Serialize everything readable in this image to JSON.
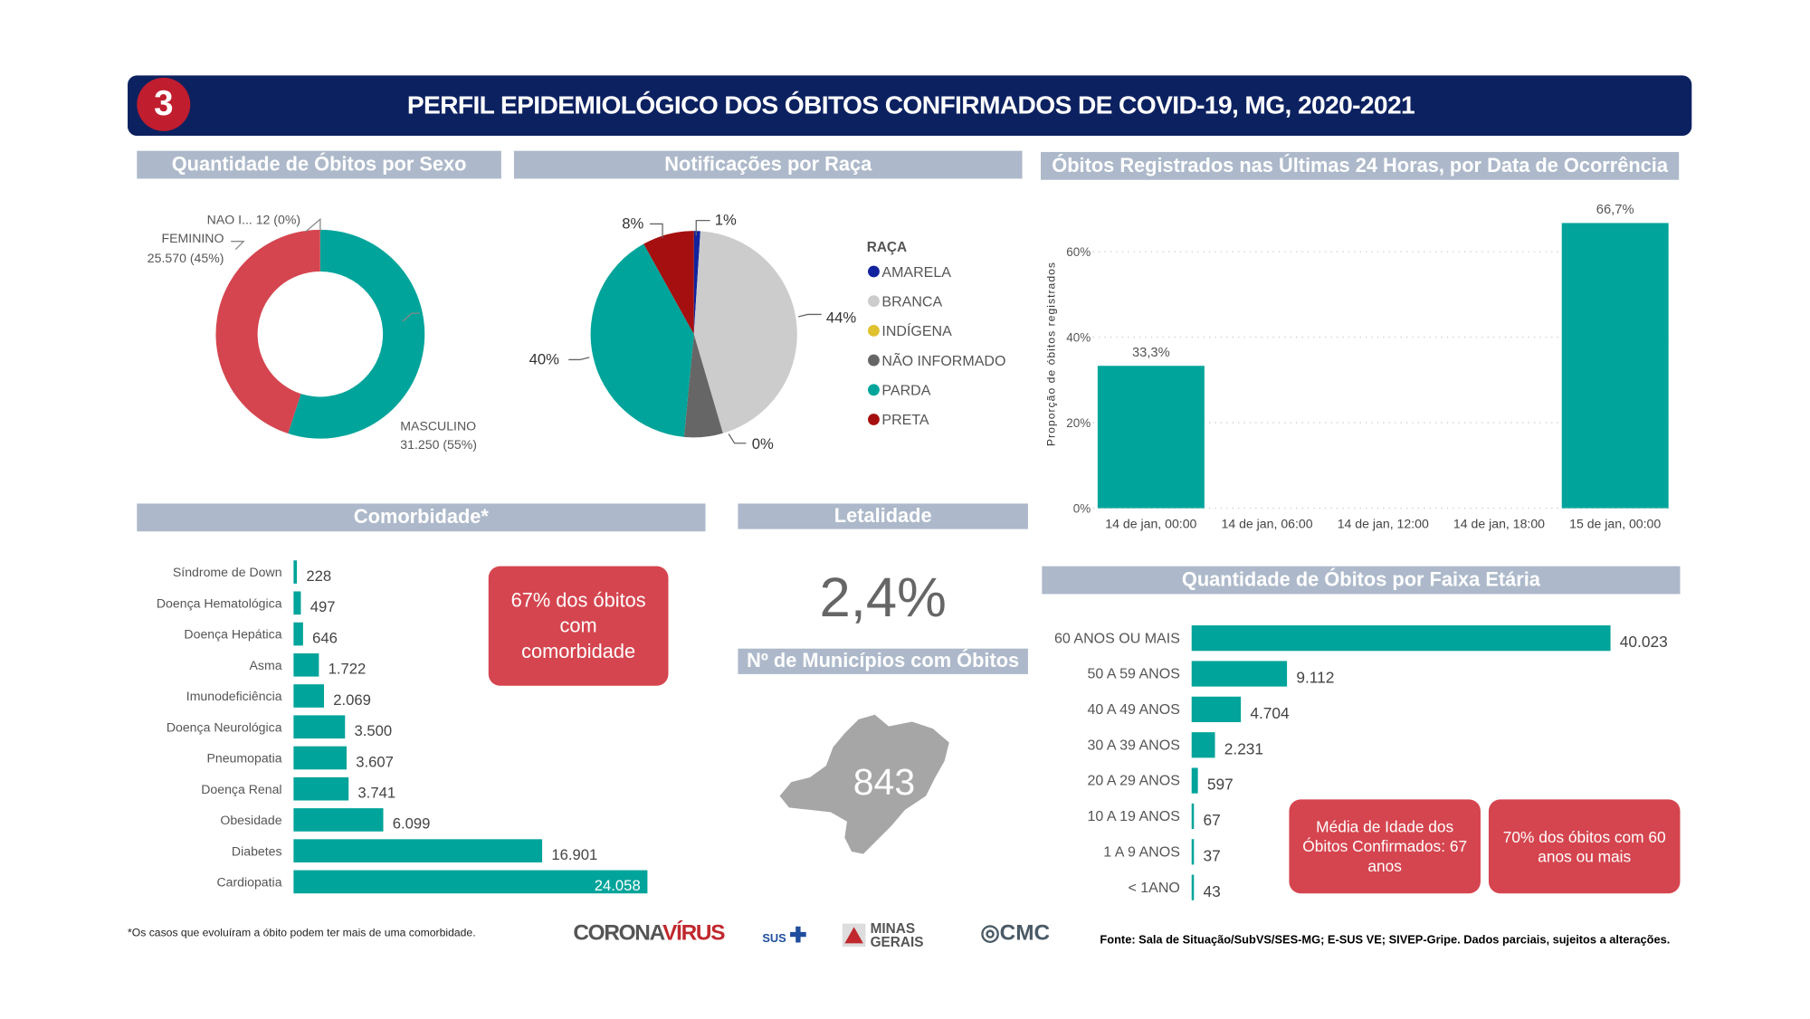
{
  "header": {
    "badge": "3",
    "title": "PERFIL EPIDEMIOLÓGICO DOS ÓBITOS CONFIRMADOS DE COVID-19, MG, 2020-2021",
    "color": "#0c2160",
    "badge_color": "#c01d2e"
  },
  "sections": {
    "sexo": "Quantidade de Óbitos por Sexo",
    "raca": "Notificações por Raça",
    "ultimas24": "Óbitos Registrados nas Últimas 24 Horas, por Data de Ocorrência",
    "comorbidade": "Comorbidade*",
    "letalidade": "Letalidade",
    "municipios": "Nº de Municípios com Óbitos",
    "faixa": "Quantidade de Óbitos por Faixa Etária"
  },
  "letalidade": {
    "value": "2,4%"
  },
  "municipios": {
    "value": "843",
    "map_color": "#a6a6a6"
  },
  "callouts": {
    "comorbidade": "67% dos óbitos com comorbidade",
    "media_idade": "Média de Idade dos Óbitos Confirmados: 67 anos",
    "sessenta": "70% dos óbitos com 60 anos ou mais",
    "color": "#d5454f"
  },
  "footer": {
    "note": "*Os casos que evoluíram a óbito podem ter mais de uma comorbidade.",
    "source": "Fonte: Sala de Situação/SubVS/SES-MG; E-SUS VE; SIVEP-Gripe. Dados parciais, sujeitos a alterações.",
    "logos": {
      "corona": "CORONA",
      "virus": "VÍRUS",
      "sus": "SUS",
      "minas": "MINAS",
      "gerais": "GERAIS",
      "cmc": "CMC"
    }
  },
  "chart_data": [
    {
      "type": "pie",
      "variant": "donut",
      "categories": [
        "MASCULINO",
        "FEMININO",
        "NAO I..."
      ],
      "values": [
        31250,
        25570,
        12
      ],
      "labels": [
        "MASCULINO",
        "FEMININO",
        "NAO I... 12 (0%)"
      ],
      "value_labels": [
        "31.250 (55%)",
        "25.570 (45%)",
        ""
      ],
      "colors": [
        "#01a49a",
        "#d5454f",
        "#777777"
      ]
    },
    {
      "type": "pie",
      "legend_title": "RAÇA",
      "legend_position": "right",
      "categories": [
        "AMARELA",
        "BRANCA",
        "INDÍGENA",
        "NÃO INFORMADO",
        "PARDA",
        "PRETA"
      ],
      "values": [
        1,
        44,
        0,
        6,
        40,
        8
      ],
      "data_labels": [
        "1%",
        "44%",
        "0%",
        "",
        "40%",
        "8%"
      ],
      "colors": [
        "#12239e",
        "#cccccc",
        "#e0c12e",
        "#666666",
        "#01a49a",
        "#a50f0f"
      ]
    },
    {
      "type": "bar",
      "ylabel": "Proporção de óbitos registrados",
      "categories": [
        "14 de jan, 00:00",
        "14 de jan, 06:00",
        "14 de jan, 12:00",
        "14 de jan, 18:00",
        "15 de jan, 00:00"
      ],
      "values": [
        33.3,
        null,
        null,
        null,
        66.7
      ],
      "data_labels": [
        "33,3%",
        "",
        "",
        "",
        "66,7%"
      ],
      "yticks": [
        "0%",
        "20%",
        "40%",
        "60%"
      ],
      "ylim": [
        0,
        70
      ],
      "grid": true,
      "color": "#01a49a"
    },
    {
      "type": "bar",
      "orientation": "horizontal",
      "categories": [
        "Síndrome de Down",
        "Doença Hematológica",
        "Doença Hepática",
        "Asma",
        "Imunodeficiência",
        "Doença Neurológica",
        "Pneumopatia",
        "Doença Renal",
        "Obesidade",
        "Diabetes",
        "Cardiopatia"
      ],
      "values": [
        228,
        497,
        646,
        1722,
        2069,
        3500,
        3607,
        3741,
        6099,
        16901,
        24058
      ],
      "data_labels": [
        "228",
        "497",
        "646",
        "1.722",
        "2.069",
        "3.500",
        "3.607",
        "3.741",
        "6.099",
        "16.901",
        "24.058"
      ],
      "color": "#01a49a"
    },
    {
      "type": "bar",
      "orientation": "horizontal",
      "categories": [
        "60 ANOS OU MAIS",
        "50 A 59 ANOS",
        "40 A 49 ANOS",
        "30 A 39 ANOS",
        "20 A 29 ANOS",
        "10 A 19 ANOS",
        "1 A 9 ANOS",
        "< 1ANO"
      ],
      "values": [
        40023,
        9112,
        4704,
        2231,
        597,
        67,
        37,
        43
      ],
      "data_labels": [
        "40.023",
        "9.112",
        "4.704",
        "2.231",
        "597",
        "67",
        "37",
        "43"
      ],
      "color": "#01a49a"
    }
  ]
}
